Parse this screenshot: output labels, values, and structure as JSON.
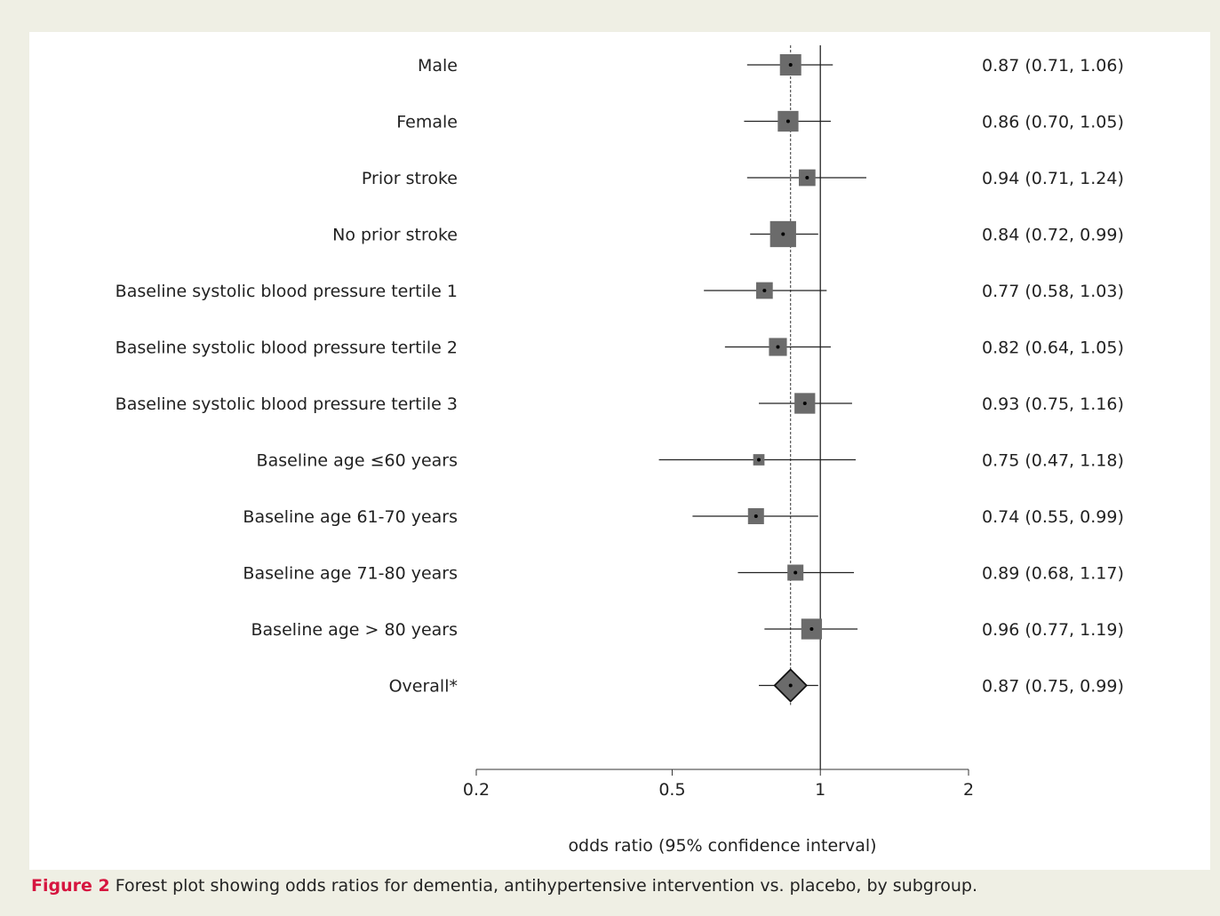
{
  "chart_data": {
    "type": "forest",
    "scale": "log",
    "xlabel": "odds ratio (95% confidence interval)",
    "xticks": [
      0.2,
      0.5,
      1,
      2
    ],
    "xtick_labels": [
      "0.2",
      "0.5",
      "1",
      "2"
    ],
    "xlim": [
      0.2,
      2
    ],
    "reference_line": 1,
    "overall_line": 0.87,
    "rows": [
      {
        "label": "Male",
        "or": 0.87,
        "lo": 0.71,
        "hi": 1.06,
        "text": "0.87 (0.71, 1.06)",
        "weight": 1.0,
        "marker": "square"
      },
      {
        "label": "Female",
        "or": 0.86,
        "lo": 0.7,
        "hi": 1.05,
        "text": "0.86 (0.70, 1.05)",
        "weight": 0.97,
        "marker": "square"
      },
      {
        "label": "Prior stroke",
        "or": 0.94,
        "lo": 0.71,
        "hi": 1.24,
        "text": "0.94 (0.71, 1.24)",
        "weight": 0.78,
        "marker": "square"
      },
      {
        "label": "No prior stroke",
        "or": 0.84,
        "lo": 0.72,
        "hi": 0.99,
        "text": "0.84 (0.72, 0.99)",
        "weight": 1.22,
        "marker": "square"
      },
      {
        "label": "Baseline systolic blood pressure tertile 1",
        "or": 0.77,
        "lo": 0.58,
        "hi": 1.03,
        "text": "0.77 (0.58, 1.03)",
        "weight": 0.78,
        "marker": "square"
      },
      {
        "label": "Baseline systolic blood pressure tertile 2",
        "or": 0.82,
        "lo": 0.64,
        "hi": 1.05,
        "text": "0.82 (0.64, 1.05)",
        "weight": 0.84,
        "marker": "square"
      },
      {
        "label": "Baseline systolic blood pressure tertile 3",
        "or": 0.93,
        "lo": 0.75,
        "hi": 1.16,
        "text": "0.93 (0.75, 1.16)",
        "weight": 0.97,
        "marker": "square"
      },
      {
        "label": "Baseline age ≤60 years",
        "or": 0.75,
        "lo": 0.47,
        "hi": 1.18,
        "text": "0.75 (0.47, 1.18)",
        "weight": 0.53,
        "marker": "square"
      },
      {
        "label": "Baseline age 61-70 years",
        "or": 0.74,
        "lo": 0.55,
        "hi": 0.99,
        "text": "0.74 (0.55, 0.99)",
        "weight": 0.75,
        "marker": "square"
      },
      {
        "label": "Baseline age 71-80 years",
        "or": 0.89,
        "lo": 0.68,
        "hi": 1.17,
        "text": "0.89 (0.68, 1.17)",
        "weight": 0.75,
        "marker": "square"
      },
      {
        "label": "Baseline age > 80 years",
        "or": 0.96,
        "lo": 0.77,
        "hi": 1.19,
        "text": "0.96 (0.77, 1.19)",
        "weight": 0.97,
        "marker": "square"
      },
      {
        "label": "Overall*",
        "or": 0.87,
        "lo": 0.75,
        "hi": 0.99,
        "text": "0.87 (0.75, 0.99)",
        "weight": 1.0,
        "marker": "diamond"
      }
    ],
    "colors": {
      "box": "#6b6b6b",
      "line": "#222222",
      "accent": "#d6153f"
    }
  },
  "caption": {
    "label": "Figure 2",
    "text": "Forest plot showing odds ratios for dementia, antihypertensive intervention vs. placebo, by subgroup."
  }
}
